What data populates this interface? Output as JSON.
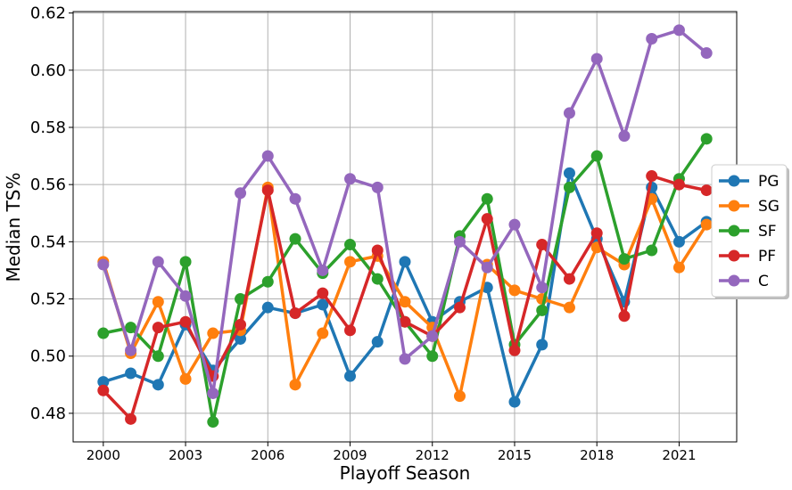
{
  "chart_data": {
    "type": "line",
    "title": "",
    "xlabel": "Playoff Season",
    "ylabel": "Median TS%",
    "xlim": [
      1998.9,
      2023.1
    ],
    "ylim": [
      0.47,
      0.6205
    ],
    "xticks": [
      2000,
      2003,
      2006,
      2009,
      2012,
      2015,
      2018,
      2021
    ],
    "xtick_labels": [
      "2000",
      "2003",
      "2006",
      "2009",
      "2012",
      "2015",
      "2018",
      "2021"
    ],
    "yticks": [
      0.48,
      0.5,
      0.52,
      0.54,
      0.56,
      0.58,
      0.6,
      0.62
    ],
    "ytick_labels": [
      "0.48",
      "0.50",
      "0.52",
      "0.54",
      "0.56",
      "0.58",
      "0.60",
      "0.62"
    ],
    "grid": true,
    "legend_position": "center-right",
    "x": [
      2000,
      2001,
      2002,
      2003,
      2004,
      2005,
      2006,
      2007,
      2008,
      2009,
      2010,
      2011,
      2012,
      2013,
      2014,
      2015,
      2016,
      2017,
      2018,
      2019,
      2020,
      2021,
      2022
    ],
    "series": [
      {
        "name": "PG",
        "color": "#1f77b4",
        "values": [
          0.491,
          0.494,
          0.49,
          0.511,
          0.495,
          0.506,
          0.517,
          0.515,
          0.518,
          0.493,
          0.505,
          0.533,
          0.512,
          0.519,
          0.524,
          0.484,
          0.504,
          0.564,
          0.541,
          0.519,
          0.559,
          0.54,
          0.547
        ]
      },
      {
        "name": "SG",
        "color": "#ff7f0e",
        "values": [
          0.533,
          0.501,
          0.519,
          0.492,
          0.508,
          0.509,
          0.559,
          0.49,
          0.508,
          0.533,
          0.535,
          0.519,
          0.51,
          0.486,
          0.532,
          0.523,
          0.52,
          0.517,
          0.538,
          0.532,
          0.555,
          0.531,
          0.546
        ]
      },
      {
        "name": "SF",
        "color": "#2ca02c",
        "values": [
          0.508,
          0.51,
          0.5,
          0.533,
          0.477,
          0.52,
          0.526,
          0.541,
          0.529,
          0.539,
          0.527,
          0.512,
          0.5,
          0.542,
          0.555,
          0.504,
          0.516,
          0.559,
          0.57,
          0.534,
          0.537,
          0.562,
          0.576
        ]
      },
      {
        "name": "PF",
        "color": "#d62728",
        "values": [
          0.488,
          0.478,
          0.51,
          0.512,
          0.493,
          0.511,
          0.558,
          0.515,
          0.522,
          0.509,
          0.537,
          0.512,
          0.507,
          0.517,
          0.548,
          0.502,
          0.539,
          0.527,
          0.543,
          0.514,
          0.563,
          0.56,
          0.558
        ]
      },
      {
        "name": "C",
        "color": "#9467bd",
        "values": [
          0.532,
          0.502,
          0.533,
          0.521,
          0.487,
          0.557,
          0.57,
          0.555,
          0.53,
          0.562,
          0.559,
          0.499,
          0.507,
          0.54,
          0.531,
          0.546,
          0.524,
          0.585,
          0.604,
          0.577,
          0.611,
          0.614,
          0.606
        ]
      }
    ]
  }
}
